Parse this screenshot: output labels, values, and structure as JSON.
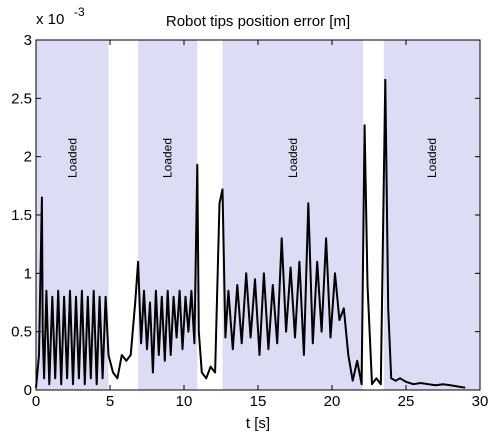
{
  "chart_data": {
    "type": "line",
    "title": "Robot tips position error [m]",
    "xlabel": "t [s]",
    "ylabel": "",
    "y_multiplier": "x 10",
    "y_exponent": "-3",
    "xlim": [
      0,
      30
    ],
    "ylim": [
      0,
      3
    ],
    "x_ticks": [
      0,
      5,
      10,
      15,
      20,
      25,
      30
    ],
    "x_tick_labels": [
      "0",
      "5",
      "10",
      "15",
      "20",
      "25",
      "30"
    ],
    "y_ticks": [
      0,
      0.5,
      1,
      1.5,
      2,
      2.5,
      3
    ],
    "y_tick_labels": [
      "0",
      "0.5",
      "1",
      "1.5",
      "2",
      "2.5",
      "3"
    ],
    "grid": false,
    "line_color": "#000000",
    "band_color": "#dcdcf4",
    "shaded_regions": [
      {
        "label": "Loaded",
        "x_start": 0,
        "x_end": 4.9
      },
      {
        "label": "Loaded",
        "x_start": 6.9,
        "x_end": 10.9
      },
      {
        "label": "Loaded",
        "x_start": 12.6,
        "x_end": 22.1
      },
      {
        "label": "Loaded",
        "x_start": 23.5,
        "x_end": 30
      }
    ],
    "series": [
      {
        "x": [
          0,
          0.2,
          0.4,
          0.45,
          0.55,
          0.7,
          0.9,
          1.1,
          1.3,
          1.5,
          1.7,
          1.9,
          2.1,
          2.3,
          2.5,
          2.7,
          2.9,
          3.1,
          3.3,
          3.5,
          3.7,
          3.9,
          4.1,
          4.3,
          4.5,
          4.7,
          4.9,
          5.2,
          5.5,
          5.8,
          6.1,
          6.4,
          6.7,
          6.9,
          7.1,
          7.3,
          7.5,
          7.7,
          7.9,
          8.1,
          8.3,
          8.5,
          8.7,
          8.9,
          9.1,
          9.3,
          9.5,
          9.7,
          9.9,
          10.1,
          10.3,
          10.5,
          10.7,
          10.9,
          11.0,
          11.2,
          11.5,
          11.8,
          12.1,
          12.4,
          12.6,
          12.8,
          13.0,
          13.3,
          13.6,
          13.9,
          14.2,
          14.5,
          14.8,
          15.1,
          15.4,
          15.7,
          16.0,
          16.3,
          16.6,
          16.9,
          17.2,
          17.5,
          17.8,
          18.1,
          18.4,
          18.7,
          19.0,
          19.3,
          19.6,
          19.9,
          20.2,
          20.5,
          20.8,
          21.1,
          21.4,
          21.7,
          22.0,
          22.2,
          22.4,
          22.7,
          23.0,
          23.3,
          23.6,
          23.8,
          24.0,
          24.3,
          24.6,
          25.0,
          25.5,
          26.0,
          26.5,
          27.0,
          27.5,
          28.0,
          28.5,
          29.0
        ],
        "y": [
          0.02,
          0.3,
          1.65,
          0.5,
          0.1,
          0.85,
          0.05,
          0.8,
          0.1,
          0.85,
          0.05,
          0.8,
          0.1,
          0.85,
          0.05,
          0.8,
          0.1,
          0.85,
          0.05,
          0.8,
          0.1,
          0.85,
          0.05,
          0.8,
          0.1,
          0.8,
          0.3,
          0.15,
          0.1,
          0.3,
          0.25,
          0.3,
          0.75,
          1.1,
          0.4,
          0.85,
          0.35,
          0.75,
          0.15,
          0.85,
          0.3,
          0.8,
          0.25,
          0.85,
          0.3,
          0.8,
          0.45,
          0.85,
          0.35,
          0.8,
          0.5,
          0.85,
          0.4,
          1.93,
          0.5,
          0.15,
          0.1,
          0.2,
          0.15,
          1.6,
          1.72,
          0.45,
          0.85,
          0.35,
          0.9,
          0.4,
          1.0,
          0.45,
          0.95,
          0.3,
          1.0,
          0.35,
          0.9,
          0.4,
          1.3,
          0.5,
          1.05,
          0.45,
          1.1,
          0.3,
          1.6,
          0.4,
          1.1,
          0.5,
          1.3,
          0.45,
          1.0,
          0.6,
          0.7,
          0.3,
          0.08,
          0.25,
          0.05,
          2.27,
          0.9,
          0.05,
          0.1,
          0.05,
          2.66,
          0.7,
          0.1,
          0.08,
          0.1,
          0.07,
          0.05,
          0.06,
          0.05,
          0.04,
          0.05,
          0.04,
          0.03,
          0.02
        ]
      }
    ],
    "annotations": [
      "Loaded",
      "Loaded",
      "Loaded",
      "Loaded"
    ]
  }
}
